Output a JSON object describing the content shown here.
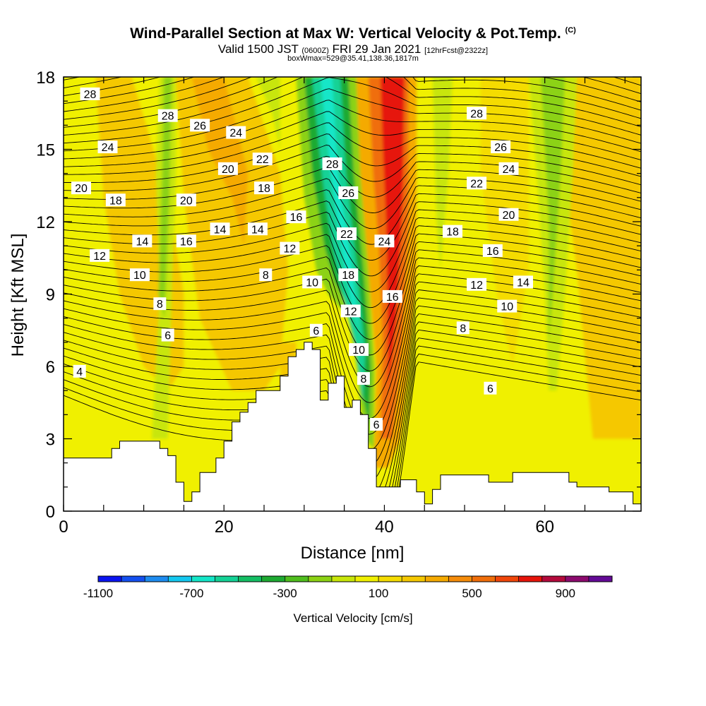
{
  "titles": {
    "main": "Wind-Parallel Section at Max W: Vertical Velocity & Pot.Temp.",
    "main_mark": "(C)",
    "line2_a": "Valid 1500 JST",
    "line2_b": "(0600Z)",
    "line2_c": "FRI 29 Jan 2021",
    "line2_d": "[12hrFcst@2322z]",
    "line3": "boxWmax=529@35.41,138.36,1817m"
  },
  "chart_data": {
    "type": "heatmap",
    "xlabel": "Distance [nm]",
    "ylabel": "Height [Kft MSL]",
    "xlim": [
      0,
      72
    ],
    "ylim": [
      0,
      18
    ],
    "x_ticks": [
      0,
      20,
      40,
      60
    ],
    "y_ticks": [
      0,
      3,
      6,
      9,
      12,
      15,
      18
    ],
    "colorbar": {
      "label": "Vertical Velocity [cm/s]",
      "tick_labels": [
        -1100,
        -700,
        -300,
        100,
        500,
        900
      ],
      "levels": [
        -1100,
        -1000,
        -900,
        -800,
        -700,
        -600,
        -500,
        -400,
        -300,
        -200,
        -100,
        0,
        100,
        200,
        300,
        400,
        500,
        600,
        700,
        800,
        900,
        1000
      ],
      "colors": [
        "#0a14f0",
        "#1450f0",
        "#1e8cf0",
        "#14c8f0",
        "#14e6c8",
        "#14d296",
        "#14be64",
        "#1eaa32",
        "#50be1e",
        "#8cd214",
        "#c8e60a",
        "#f0f000",
        "#f5dc00",
        "#f5c800",
        "#f5aa00",
        "#f58c0a",
        "#f06e0a",
        "#f0460a",
        "#e6140a",
        "#b40a3c",
        "#8c0a6e",
        "#640a96"
      ]
    },
    "terrain_kft": [
      [
        0,
        2.2
      ],
      [
        5,
        2.2
      ],
      [
        6,
        2.6
      ],
      [
        7,
        2.9
      ],
      [
        11,
        2.9
      ],
      [
        12,
        2.6
      ],
      [
        13,
        2.3
      ],
      [
        14,
        1.2
      ],
      [
        15,
        0.4
      ],
      [
        16,
        0.8
      ],
      [
        17,
        1.6
      ],
      [
        18,
        1.6
      ],
      [
        19,
        2.2
      ],
      [
        20,
        2.9
      ],
      [
        21,
        3.7
      ],
      [
        22,
        4.1
      ],
      [
        23,
        4.5
      ],
      [
        24,
        5.0
      ],
      [
        26,
        5.0
      ],
      [
        27,
        5.6
      ],
      [
        28,
        6.4
      ],
      [
        29,
        6.7
      ],
      [
        30,
        7.0
      ],
      [
        31,
        6.7
      ],
      [
        32,
        4.6
      ],
      [
        33,
        5.3
      ],
      [
        34,
        5.6
      ],
      [
        35,
        4.3
      ],
      [
        36,
        4.6
      ],
      [
        37,
        4.0
      ],
      [
        38,
        2.6
      ],
      [
        39,
        1.0
      ],
      [
        41,
        1.0
      ],
      [
        42,
        1.3
      ],
      [
        43,
        1.3
      ],
      [
        44,
        0.8
      ],
      [
        45,
        0.3
      ],
      [
        46,
        0.9
      ],
      [
        47,
        1.5
      ],
      [
        52,
        1.5
      ],
      [
        53,
        1.2
      ],
      [
        55,
        1.2
      ],
      [
        56,
        1.6
      ],
      [
        62,
        1.6
      ],
      [
        63,
        1.2
      ],
      [
        64,
        1.0
      ],
      [
        67,
        1.0
      ],
      [
        68,
        0.8
      ],
      [
        70,
        0.8
      ],
      [
        71,
        0.3
      ],
      [
        72,
        0.3
      ]
    ],
    "contour_labels": [
      {
        "t": "28",
        "x": 3.3,
        "y": 17.3
      },
      {
        "t": "28",
        "x": 13.0,
        "y": 16.4
      },
      {
        "t": "26",
        "x": 17.0,
        "y": 16.0
      },
      {
        "t": "24",
        "x": 21.5,
        "y": 15.7
      },
      {
        "t": "24",
        "x": 5.5,
        "y": 15.1
      },
      {
        "t": "22",
        "x": 24.8,
        "y": 14.6
      },
      {
        "t": "20",
        "x": 20.5,
        "y": 14.2
      },
      {
        "t": "20",
        "x": 2.2,
        "y": 13.4
      },
      {
        "t": "18",
        "x": 25.0,
        "y": 13.4
      },
      {
        "t": "18",
        "x": 6.5,
        "y": 12.9
      },
      {
        "t": "20",
        "x": 15.3,
        "y": 12.9
      },
      {
        "t": "16",
        "x": 29.0,
        "y": 12.2
      },
      {
        "t": "14",
        "x": 19.5,
        "y": 11.7
      },
      {
        "t": "14",
        "x": 24.2,
        "y": 11.7
      },
      {
        "t": "14",
        "x": 9.8,
        "y": 11.2
      },
      {
        "t": "16",
        "x": 15.3,
        "y": 11.2
      },
      {
        "t": "12",
        "x": 28.2,
        "y": 10.9
      },
      {
        "t": "12",
        "x": 4.5,
        "y": 10.6
      },
      {
        "t": "10",
        "x": 9.5,
        "y": 9.8
      },
      {
        "t": "8",
        "x": 25.2,
        "y": 9.8
      },
      {
        "t": "10",
        "x": 31.0,
        "y": 9.5
      },
      {
        "t": "8",
        "x": 12.0,
        "y": 8.6
      },
      {
        "t": "6",
        "x": 13.0,
        "y": 7.3
      },
      {
        "t": "6",
        "x": 31.5,
        "y": 7.5
      },
      {
        "t": "4",
        "x": 2.0,
        "y": 5.8
      },
      {
        "t": "28",
        "x": 33.5,
        "y": 14.4
      },
      {
        "t": "26",
        "x": 35.5,
        "y": 13.2
      },
      {
        "t": "22",
        "x": 35.3,
        "y": 11.5
      },
      {
        "t": "24",
        "x": 40.0,
        "y": 11.2
      },
      {
        "t": "18",
        "x": 35.5,
        "y": 9.8
      },
      {
        "t": "16",
        "x": 41.0,
        "y": 8.9
      },
      {
        "t": "12",
        "x": 35.8,
        "y": 8.3
      },
      {
        "t": "10",
        "x": 36.8,
        "y": 6.7
      },
      {
        "t": "8",
        "x": 37.4,
        "y": 5.5
      },
      {
        "t": "6",
        "x": 39.0,
        "y": 3.6
      },
      {
        "t": "28",
        "x": 51.5,
        "y": 16.5
      },
      {
        "t": "26",
        "x": 54.5,
        "y": 15.1
      },
      {
        "t": "24",
        "x": 55.5,
        "y": 14.2
      },
      {
        "t": "22",
        "x": 51.5,
        "y": 13.6
      },
      {
        "t": "20",
        "x": 55.5,
        "y": 12.3
      },
      {
        "t": "18",
        "x": 48.5,
        "y": 11.6
      },
      {
        "t": "16",
        "x": 53.5,
        "y": 10.8
      },
      {
        "t": "12",
        "x": 51.5,
        "y": 9.4
      },
      {
        "t": "14",
        "x": 57.3,
        "y": 9.5
      },
      {
        "t": "10",
        "x": 55.3,
        "y": 8.5
      },
      {
        "t": "8",
        "x": 49.8,
        "y": 7.6
      },
      {
        "t": "6",
        "x": 53.2,
        "y": 5.1
      }
    ]
  }
}
